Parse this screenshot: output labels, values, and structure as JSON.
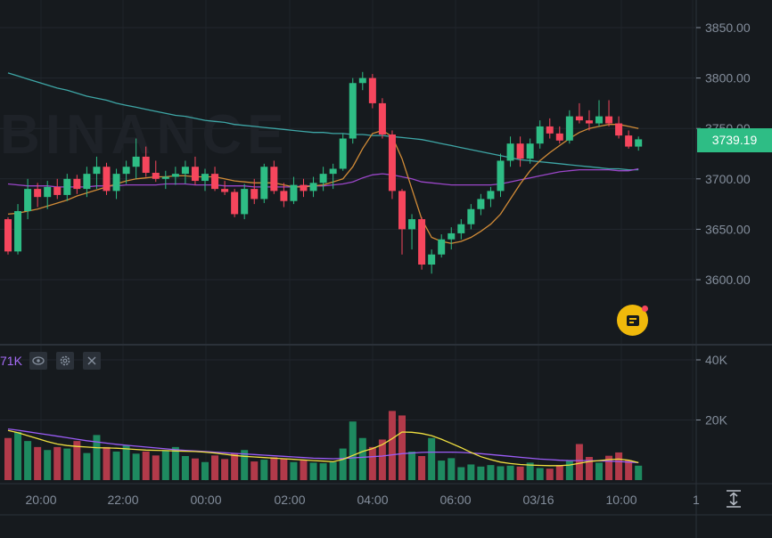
{
  "price_axis": {
    "labels": [
      "3850.00",
      "3800.00",
      "3750.00",
      "3700.00",
      "3650.00",
      "3600.00"
    ],
    "values": [
      3850,
      3800,
      3750,
      3700,
      3650,
      3600
    ]
  },
  "current_price": {
    "label": "3739.19",
    "value": 3739.19,
    "color": "#2ebd85"
  },
  "watermark": "BINANCE",
  "volume_legend": {
    "value": "71K",
    "icons": [
      "eye-icon",
      "gear-icon",
      "close-icon"
    ]
  },
  "volume_axis": {
    "labels": [
      "40K",
      "20K"
    ],
    "values": [
      40000,
      20000
    ]
  },
  "time_axis": {
    "labels": [
      "20:00",
      "22:00",
      "00:00",
      "02:00",
      "04:00",
      "06:00",
      "03/16",
      "10:00",
      "1"
    ]
  },
  "colors": {
    "up": "#2ebd85",
    "down": "#f6465d",
    "ma_fast": "#d18b37",
    "ma_mid": "#9b46c9",
    "ma_slow": "#3ea6a6",
    "vol_ma_fast": "#f0e040",
    "vol_ma_slow": "#9b5cf6"
  },
  "chart_data": {
    "type": "candlestick",
    "ohlc": [
      [
        3660,
        3662,
        3625,
        3628
      ],
      [
        3628,
        3675,
        3625,
        3668
      ],
      [
        3668,
        3700,
        3660,
        3690
      ],
      [
        3690,
        3696,
        3672,
        3682
      ],
      [
        3682,
        3698,
        3670,
        3692
      ],
      [
        3692,
        3700,
        3680,
        3684
      ],
      [
        3684,
        3705,
        3678,
        3700
      ],
      [
        3700,
        3704,
        3685,
        3690
      ],
      [
        3690,
        3712,
        3682,
        3705
      ],
      [
        3705,
        3722,
        3690,
        3712
      ],
      [
        3712,
        3716,
        3684,
        3688
      ],
      [
        3688,
        3710,
        3680,
        3705
      ],
      [
        3705,
        3718,
        3695,
        3712
      ],
      [
        3712,
        3740,
        3700,
        3722
      ],
      [
        3722,
        3732,
        3702,
        3706
      ],
      [
        3706,
        3718,
        3697,
        3700
      ],
      [
        3700,
        3708,
        3690,
        3702
      ],
      [
        3702,
        3712,
        3694,
        3705
      ],
      [
        3705,
        3718,
        3695,
        3712
      ],
      [
        3712,
        3722,
        3694,
        3698
      ],
      [
        3698,
        3710,
        3688,
        3705
      ],
      [
        3705,
        3712,
        3688,
        3690
      ],
      [
        3690,
        3698,
        3684,
        3687
      ],
      [
        3687,
        3690,
        3662,
        3665
      ],
      [
        3665,
        3695,
        3660,
        3690
      ],
      [
        3690,
        3700,
        3675,
        3680
      ],
      [
        3680,
        3715,
        3676,
        3712
      ],
      [
        3712,
        3718,
        3685,
        3688
      ],
      [
        3688,
        3696,
        3672,
        3678
      ],
      [
        3678,
        3702,
        3675,
        3694
      ],
      [
        3694,
        3700,
        3682,
        3688
      ],
      [
        3688,
        3702,
        3682,
        3696
      ],
      [
        3696,
        3712,
        3688,
        3705
      ],
      [
        3705,
        3715,
        3690,
        3710
      ],
      [
        3710,
        3745,
        3708,
        3740
      ],
      [
        3740,
        3800,
        3735,
        3795
      ],
      [
        3795,
        3806,
        3788,
        3800
      ],
      [
        3800,
        3804,
        3770,
        3775
      ],
      [
        3775,
        3780,
        3740,
        3744
      ],
      [
        3744,
        3748,
        3680,
        3688
      ],
      [
        3688,
        3690,
        3625,
        3650
      ],
      [
        3650,
        3665,
        3630,
        3660
      ],
      [
        3660,
        3662,
        3610,
        3615
      ],
      [
        3615,
        3630,
        3606,
        3625
      ],
      [
        3625,
        3645,
        3622,
        3640
      ],
      [
        3640,
        3652,
        3630,
        3646
      ],
      [
        3646,
        3660,
        3640,
        3655
      ],
      [
        3655,
        3675,
        3650,
        3670
      ],
      [
        3670,
        3685,
        3664,
        3680
      ],
      [
        3680,
        3692,
        3672,
        3688
      ],
      [
        3688,
        3725,
        3682,
        3718
      ],
      [
        3718,
        3742,
        3712,
        3735
      ],
      [
        3735,
        3742,
        3712,
        3720
      ],
      [
        3720,
        3740,
        3715,
        3735
      ],
      [
        3735,
        3758,
        3730,
        3752
      ],
      [
        3752,
        3760,
        3740,
        3745
      ],
      [
        3745,
        3752,
        3735,
        3738
      ],
      [
        3738,
        3768,
        3735,
        3762
      ],
      [
        3762,
        3775,
        3755,
        3758
      ],
      [
        3758,
        3768,
        3748,
        3755
      ],
      [
        3755,
        3778,
        3752,
        3762
      ],
      [
        3762,
        3778,
        3752,
        3755
      ],
      [
        3755,
        3762,
        3740,
        3743
      ],
      [
        3743,
        3748,
        3730,
        3732
      ],
      [
        3732,
        3742,
        3728,
        3739.19
      ]
    ],
    "ma_fast": [
      3665,
      3666,
      3668,
      3670,
      3673,
      3676,
      3679,
      3683,
      3686,
      3689,
      3692,
      3695,
      3698,
      3700,
      3701,
      3702,
      3702,
      3703,
      3703,
      3702,
      3702,
      3702,
      3700,
      3698,
      3697,
      3696,
      3696,
      3696,
      3694,
      3692,
      3692,
      3693,
      3694,
      3697,
      3700,
      3712,
      3730,
      3745,
      3748,
      3742,
      3720,
      3690,
      3660,
      3642,
      3638,
      3636,
      3638,
      3642,
      3648,
      3655,
      3665,
      3680,
      3695,
      3708,
      3718,
      3726,
      3733,
      3740,
      3746,
      3750,
      3752,
      3754,
      3754,
      3752,
      3750
    ],
    "ma_mid": [
      3695,
      3694,
      3693,
      3693,
      3693,
      3692,
      3692,
      3692,
      3692,
      3693,
      3693,
      3693,
      3694,
      3694,
      3694,
      3694,
      3695,
      3695,
      3695,
      3694,
      3694,
      3694,
      3693,
      3693,
      3693,
      3692,
      3692,
      3692,
      3692,
      3692,
      3693,
      3693,
      3693,
      3694,
      3695,
      3697,
      3701,
      3704,
      3705,
      3704,
      3702,
      3700,
      3697,
      3696,
      3695,
      3694,
      3694,
      3694,
      3694,
      3694,
      3695,
      3697,
      3699,
      3701,
      3703,
      3705,
      3707,
      3708,
      3709,
      3709,
      3709,
      3709,
      3708,
      3708,
      3710
    ],
    "ma_slow": [
      3805,
      3802,
      3799,
      3796,
      3793,
      3790,
      3788,
      3785,
      3782,
      3780,
      3778,
      3775,
      3773,
      3771,
      3769,
      3767,
      3765,
      3763,
      3762,
      3760,
      3758,
      3757,
      3756,
      3754,
      3753,
      3752,
      3751,
      3750,
      3749,
      3748,
      3747,
      3746,
      3746,
      3745,
      3745,
      3744,
      3744,
      3743,
      3743,
      3742,
      3741,
      3740,
      3739,
      3737,
      3735,
      3733,
      3731,
      3729,
      3727,
      3725,
      3723,
      3721,
      3719,
      3718,
      3717,
      3716,
      3715,
      3714,
      3713,
      3712,
      3711,
      3710,
      3710,
      3709,
      3709
    ],
    "volume": [
      14000,
      16000,
      13000,
      11000,
      10000,
      11000,
      10500,
      13000,
      9000,
      15000,
      11000,
      9500,
      11500,
      8800,
      9500,
      8200,
      9800,
      11000,
      8000,
      7200,
      6000,
      8200,
      7000,
      9000,
      10000,
      6200,
      6800,
      7600,
      7200,
      6000,
      6600,
      5800,
      5600,
      6000,
      10500,
      19500,
      14000,
      11000,
      13500,
      23000,
      21500,
      9500,
      8000,
      14000,
      6500,
      7300,
      4300,
      5200,
      4500,
      5000,
      4600,
      4800,
      4500,
      5800,
      4000,
      3800,
      5000,
      6600,
      12000,
      7700,
      5800,
      8100,
      9200,
      6600,
      4800
    ],
    "volume_ma_fast": [
      16500,
      15800,
      14800,
      13800,
      12800,
      12000,
      11500,
      11200,
      11000,
      10800,
      10700,
      10600,
      10400,
      10200,
      10000,
      9900,
      9800,
      9700,
      9600,
      9500,
      9300,
      9000,
      8600,
      8200,
      7900,
      7700,
      7500,
      7300,
      7100,
      6900,
      6700,
      6500,
      6300,
      6100,
      6900,
      8200,
      9500,
      10500,
      11800,
      13800,
      16000,
      15900,
      15500,
      14800,
      13600,
      12200,
      10800,
      9200,
      7800,
      6800,
      6000,
      5500,
      5200,
      5000,
      4900,
      4800,
      4800,
      5000,
      5600,
      6200,
      6500,
      6800,
      7000,
      6600,
      5800
    ],
    "volume_ma_slow": [
      17000,
      16600,
      16100,
      15600,
      15100,
      14600,
      14100,
      13600,
      13100,
      12700,
      12300,
      11900,
      11600,
      11300,
      11000,
      10700,
      10400,
      10100,
      9900,
      9700,
      9500,
      9300,
      9100,
      8900,
      8700,
      8500,
      8300,
      8100,
      7900,
      7700,
      7500,
      7300,
      7200,
      7100,
      7200,
      7400,
      7600,
      7800,
      8000,
      8400,
      8800,
      9000,
      9200,
      9300,
      9300,
      9300,
      9200,
      9000,
      8800,
      8500,
      8200,
      7900,
      7600,
      7300,
      7000,
      6800,
      6600,
      6500,
      6500,
      6500,
      6400,
      6300,
      6200,
      6000,
      5800
    ],
    "ylim": [
      3560,
      3870
    ],
    "vol_ylim": [
      0,
      46000
    ],
    "grid": true
  }
}
